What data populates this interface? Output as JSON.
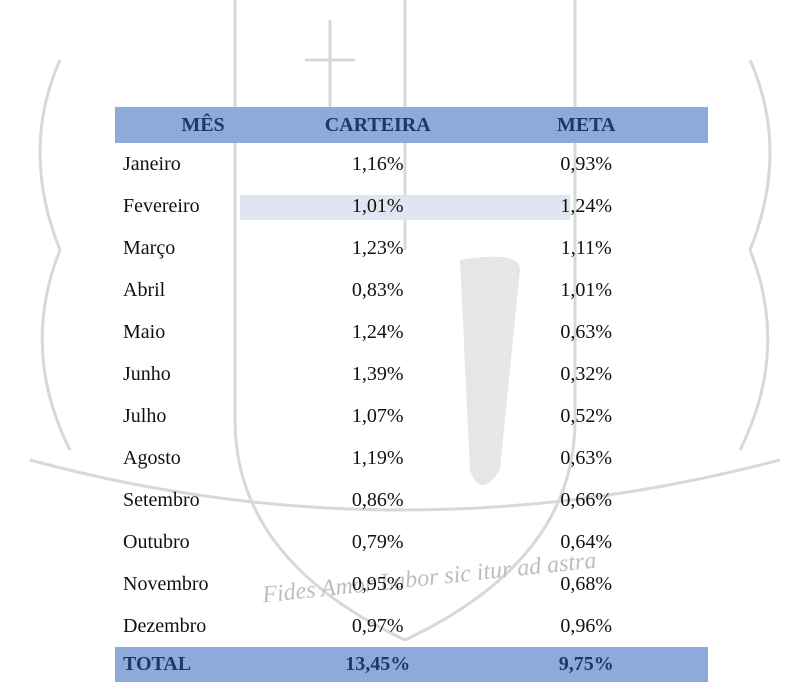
{
  "watermark": {
    "motto": "Fides Amor Labor sic itur ad astra"
  },
  "table": {
    "header": [
      "MÊS",
      "CARTEIRA",
      "META"
    ],
    "rows": [
      [
        "Janeiro",
        "1,16%",
        "0,93%"
      ],
      [
        "Fevereiro",
        "1,01%",
        "1,24%"
      ],
      [
        "Março",
        "1,23%",
        "1,11%"
      ],
      [
        "Abril",
        "0,83%",
        "1,01%"
      ],
      [
        "Maio",
        "1,24%",
        "0,63%"
      ],
      [
        "Junho",
        "1,39%",
        "0,32%"
      ],
      [
        "Julho",
        "1,07%",
        "0,52%"
      ],
      [
        "Agosto",
        "1,19%",
        "0,63%"
      ],
      [
        "Setembro",
        "0,86%",
        "0,66%"
      ],
      [
        "Outubro",
        "0,79%",
        "0,64%"
      ],
      [
        "Novembro",
        "0,95%",
        "0,68%"
      ],
      [
        "Dezembro",
        "0,97%",
        "0,96%"
      ]
    ],
    "total": [
      "TOTAL",
      "13,45%",
      "9,75%"
    ]
  }
}
